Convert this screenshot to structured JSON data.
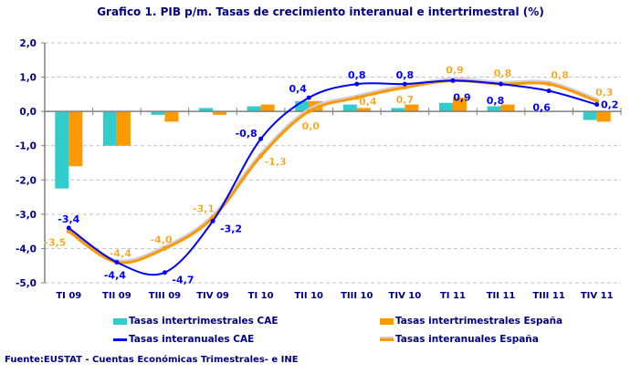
{
  "chart_data": {
    "type": "bar+line",
    "title": "Grafico 1. PIB p/m. Tasas de crecimiento interanual e intertrimestral (%)",
    "categories": [
      "TI 09",
      "TII 09",
      "TIII 09",
      "TIV 09",
      "TI 10",
      "TII 10",
      "TIII 10",
      "TIV 10",
      "TI 11",
      "TII 11",
      "TIII 11",
      "TIV 11"
    ],
    "ylim": [
      -5,
      2
    ],
    "yticks": [
      "2,0",
      "1,0",
      "0,0",
      "-1,0",
      "-2,0",
      "-3,0",
      "-4,0",
      "-5,0"
    ],
    "grid": true,
    "legend_position": "bottom",
    "series": [
      {
        "name": "Tasas intertrimestrales CAE",
        "kind": "bar",
        "color": "#33CCCC",
        "values": [
          -2.25,
          -1.0,
          -0.1,
          0.1,
          0.15,
          0.3,
          0.2,
          0.1,
          0.25,
          0.15,
          0.0,
          -0.25
        ]
      },
      {
        "name": "Tasas intertrimestrales España",
        "kind": "bar",
        "color": "#FF9900",
        "values": [
          -1.6,
          -1.0,
          -0.3,
          -0.1,
          0.2,
          0.3,
          0.1,
          0.2,
          0.4,
          0.2,
          0.0,
          -0.3
        ]
      },
      {
        "name": "Tasas interanuales CAE",
        "kind": "line",
        "color": "#0000FF",
        "values": [
          -3.4,
          -4.4,
          -4.7,
          -3.2,
          -0.8,
          0.4,
          0.8,
          0.8,
          0.9,
          0.8,
          0.6,
          0.2
        ],
        "labels": [
          "-3,4",
          "-4,4",
          "-4,7",
          "-3,2",
          "-0,8",
          "0,4",
          "0,8",
          "0,8",
          "0,9",
          "0,8",
          "0,6",
          "0,2"
        ]
      },
      {
        "name": "Tasas interanuales España",
        "kind": "line",
        "color": "#FF9900",
        "values": [
          -3.5,
          -4.4,
          -4.0,
          -3.1,
          -1.3,
          0.0,
          0.4,
          0.7,
          0.9,
          0.8,
          0.8,
          0.3
        ],
        "labels": [
          "-3,5",
          "-4,4",
          "-4,0",
          "-3,1",
          "-1,3",
          "0,0",
          "0,4",
          "0,7",
          "0,9",
          "0,8",
          "0,8",
          "0,3"
        ]
      }
    ]
  },
  "footer": "Fuente:EUSTAT - Cuentas Económicas Trimestrales- e INE"
}
